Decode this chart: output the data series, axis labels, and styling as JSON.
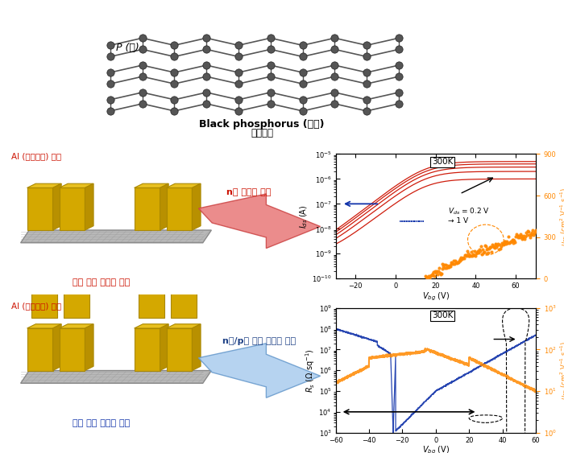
{
  "title_top": "Black phosphorus (흑린)",
  "subtitle_top": "원자모형",
  "p_label": "P (인)",
  "al_label_top": "Al (알루미놈) 전극",
  "al_label_bot": "Al (알루미놈) 전극",
  "device_label_top": "소층 흑린 반도체 소자",
  "device_label_bot": "다층 흑린 반도체 소자",
  "arrow_label_top": "n형 반도체 특성",
  "arrow_label_bot": "n형/p형 동시 반도체 특성",
  "plot1_temp": "300K",
  "plot2_temp": "300K",
  "plot1_xlabel": "$V_{bg}$ (V)",
  "plot1_ylabel_left": "$I_{ds}$ (A)",
  "plot1_ylabel_right": "$\\mu_{FE}$ (cm$^2$ V$^{-1}$ s$^{-1}$)",
  "plot2_xlabel": "$V_{bg}$ (V)",
  "plot2_ylabel_left": "$R_s$ ($\\Omega$ sq$^{-1}$)",
  "plot2_ylabel_right": "$\\mu_{FE}$ (cm$^2$ V$^{-1}$ s$^{-1}$)",
  "plot1_annotation": "$V_{ds}$ = 0.2 V\n→ 1 V",
  "bg_color": "#ffffff",
  "red_color": "#cc1100",
  "orange_color": "#ff8800",
  "blue_color": "#1133aa",
  "light_blue_color": "#88aadd"
}
